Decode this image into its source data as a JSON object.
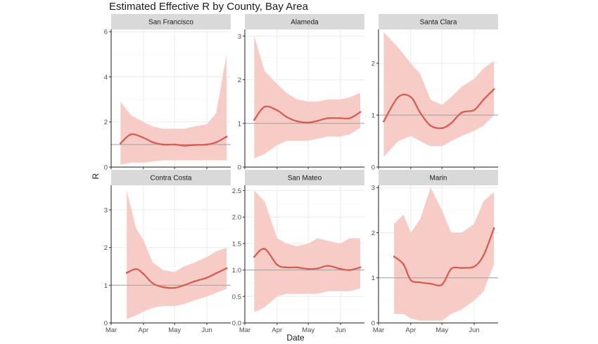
{
  "chart_data": {
    "type": "line",
    "title": "Estimated Effective R by County, Bay Area",
    "xlabel": "Date",
    "ylabel": "R",
    "x_ticks": [
      "Mar",
      "Apr",
      "May",
      "Jun"
    ],
    "reference_line": 1,
    "grid": true,
    "colors": {
      "line": "#d9594c",
      "band": "#f8c9c3",
      "strip": "#d9d9d9",
      "reference": "#9e9e9e",
      "grid": "#ebebeb"
    },
    "panels": [
      {
        "name": "San Francisco",
        "ylim": [
          0,
          6.1
        ],
        "y_ticks": [
          0,
          2,
          4,
          6
        ],
        "x": [
          "2020-03-10",
          "2020-03-20",
          "2020-04-01",
          "2020-04-10",
          "2020-04-20",
          "2020-05-01",
          "2020-05-10",
          "2020-05-20",
          "2020-06-01",
          "2020-06-10",
          "2020-06-20"
        ],
        "r": [
          1.05,
          1.45,
          1.3,
          1.1,
          1.0,
          1.0,
          0.95,
          0.98,
          1.0,
          1.1,
          1.35
        ],
        "lower": [
          0.1,
          0.2,
          0.2,
          0.25,
          0.3,
          0.3,
          0.3,
          0.3,
          0.3,
          0.3,
          0.3
        ],
        "upper": [
          2.9,
          2.3,
          2.0,
          1.8,
          1.7,
          1.7,
          1.7,
          1.8,
          1.9,
          2.4,
          5.0
        ]
      },
      {
        "name": "Alameda",
        "ylim": [
          0,
          3.15
        ],
        "y_ticks": [
          0,
          1,
          2,
          3
        ],
        "x": [
          "2020-03-10",
          "2020-03-20",
          "2020-04-01",
          "2020-04-10",
          "2020-04-20",
          "2020-05-01",
          "2020-05-10",
          "2020-05-20",
          "2020-06-01",
          "2020-06-10",
          "2020-06-20"
        ],
        "r": [
          1.08,
          1.38,
          1.3,
          1.15,
          1.05,
          1.02,
          1.06,
          1.12,
          1.12,
          1.12,
          1.26
        ],
        "lower": [
          0.2,
          0.3,
          0.5,
          0.6,
          0.6,
          0.6,
          0.65,
          0.7,
          0.7,
          0.75,
          0.9
        ],
        "upper": [
          3.0,
          2.2,
          1.9,
          1.7,
          1.55,
          1.5,
          1.5,
          1.55,
          1.55,
          1.6,
          1.7
        ]
      },
      {
        "name": "Santa Clara",
        "ylim": [
          0,
          2.65
        ],
        "y_ticks": [
          0,
          1,
          2
        ],
        "x": [
          "2020-03-06",
          "2020-03-20",
          "2020-04-01",
          "2020-04-10",
          "2020-04-20",
          "2020-05-01",
          "2020-05-10",
          "2020-05-20",
          "2020-06-01",
          "2020-06-10",
          "2020-06-20"
        ],
        "r": [
          0.88,
          1.35,
          1.35,
          1.05,
          0.8,
          0.75,
          0.85,
          1.05,
          1.1,
          1.3,
          1.5
        ],
        "lower": [
          0.2,
          0.5,
          0.6,
          0.5,
          0.4,
          0.4,
          0.5,
          0.6,
          0.7,
          0.8,
          1.0
        ],
        "upper": [
          2.6,
          2.3,
          2.0,
          1.8,
          1.3,
          1.2,
          1.35,
          1.55,
          1.7,
          1.9,
          2.05
        ]
      },
      {
        "name": "Contra Costa",
        "ylim": [
          0,
          3.65
        ],
        "y_ticks": [
          0,
          1,
          2,
          3
        ],
        "x": [
          "2020-03-16",
          "2020-03-25",
          "2020-04-01",
          "2020-04-10",
          "2020-04-20",
          "2020-05-01",
          "2020-05-10",
          "2020-05-20",
          "2020-06-01",
          "2020-06-10",
          "2020-06-20"
        ],
        "r": [
          1.33,
          1.43,
          1.3,
          1.05,
          0.95,
          0.93,
          1.0,
          1.1,
          1.2,
          1.32,
          1.45
        ],
        "lower": [
          0.1,
          0.2,
          0.3,
          0.4,
          0.45,
          0.45,
          0.5,
          0.6,
          0.7,
          0.8,
          0.9
        ],
        "upper": [
          3.5,
          2.5,
          2.2,
          1.6,
          1.4,
          1.35,
          1.5,
          1.6,
          1.75,
          1.9,
          2.0
        ]
      },
      {
        "name": "San Mateo",
        "ylim": [
          0,
          2.6
        ],
        "y_ticks": [
          0.0,
          0.5,
          1.0,
          1.5,
          2.0,
          2.5
        ],
        "x": [
          "2020-03-10",
          "2020-03-20",
          "2020-04-01",
          "2020-04-10",
          "2020-04-20",
          "2020-05-01",
          "2020-05-10",
          "2020-05-20",
          "2020-06-01",
          "2020-06-10",
          "2020-06-20"
        ],
        "r": [
          1.25,
          1.4,
          1.1,
          1.05,
          1.05,
          1.02,
          1.03,
          1.08,
          1.02,
          1.0,
          1.05
        ],
        "lower": [
          0.2,
          0.3,
          0.5,
          0.55,
          0.55,
          0.55,
          0.55,
          0.6,
          0.6,
          0.6,
          0.65
        ],
        "upper": [
          2.5,
          2.3,
          1.6,
          1.5,
          1.45,
          1.5,
          1.6,
          1.55,
          1.5,
          1.6,
          1.6
        ]
      },
      {
        "name": "Marin",
        "ylim": [
          0,
          3.05
        ],
        "y_ticks": [
          0,
          1,
          2,
          3
        ],
        "x": [
          "2020-03-16",
          "2020-03-25",
          "2020-04-01",
          "2020-04-10",
          "2020-04-20",
          "2020-05-01",
          "2020-05-10",
          "2020-05-20",
          "2020-06-01",
          "2020-06-10",
          "2020-06-20"
        ],
        "r": [
          1.47,
          1.3,
          0.95,
          0.9,
          0.87,
          0.85,
          1.2,
          1.22,
          1.25,
          1.5,
          2.1
        ],
        "lower": [
          0.2,
          0.2,
          0.1,
          0.05,
          0.05,
          0.05,
          0.2,
          0.3,
          0.5,
          0.7,
          1.3
        ],
        "upper": [
          2.2,
          2.4,
          2.0,
          2.3,
          3.0,
          2.5,
          2.0,
          2.0,
          2.2,
          2.7,
          2.9
        ]
      }
    ]
  }
}
